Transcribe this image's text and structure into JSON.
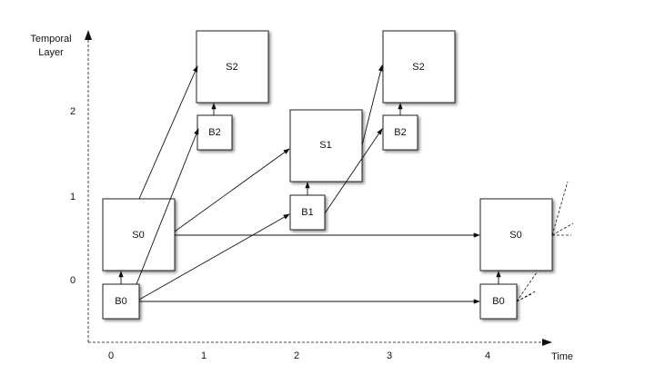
{
  "axes": {
    "y_label": [
      "Temporal",
      "Layer"
    ],
    "y_ticks": [
      "2",
      "1",
      "0"
    ],
    "x_ticks": [
      "0",
      "1",
      "2",
      "3",
      "4"
    ],
    "x_label": "Time"
  },
  "nodes": [
    "S2",
    "B2",
    "S1",
    "B1",
    "S2",
    "B2",
    "S0",
    "B0",
    "S0",
    "B0"
  ]
}
